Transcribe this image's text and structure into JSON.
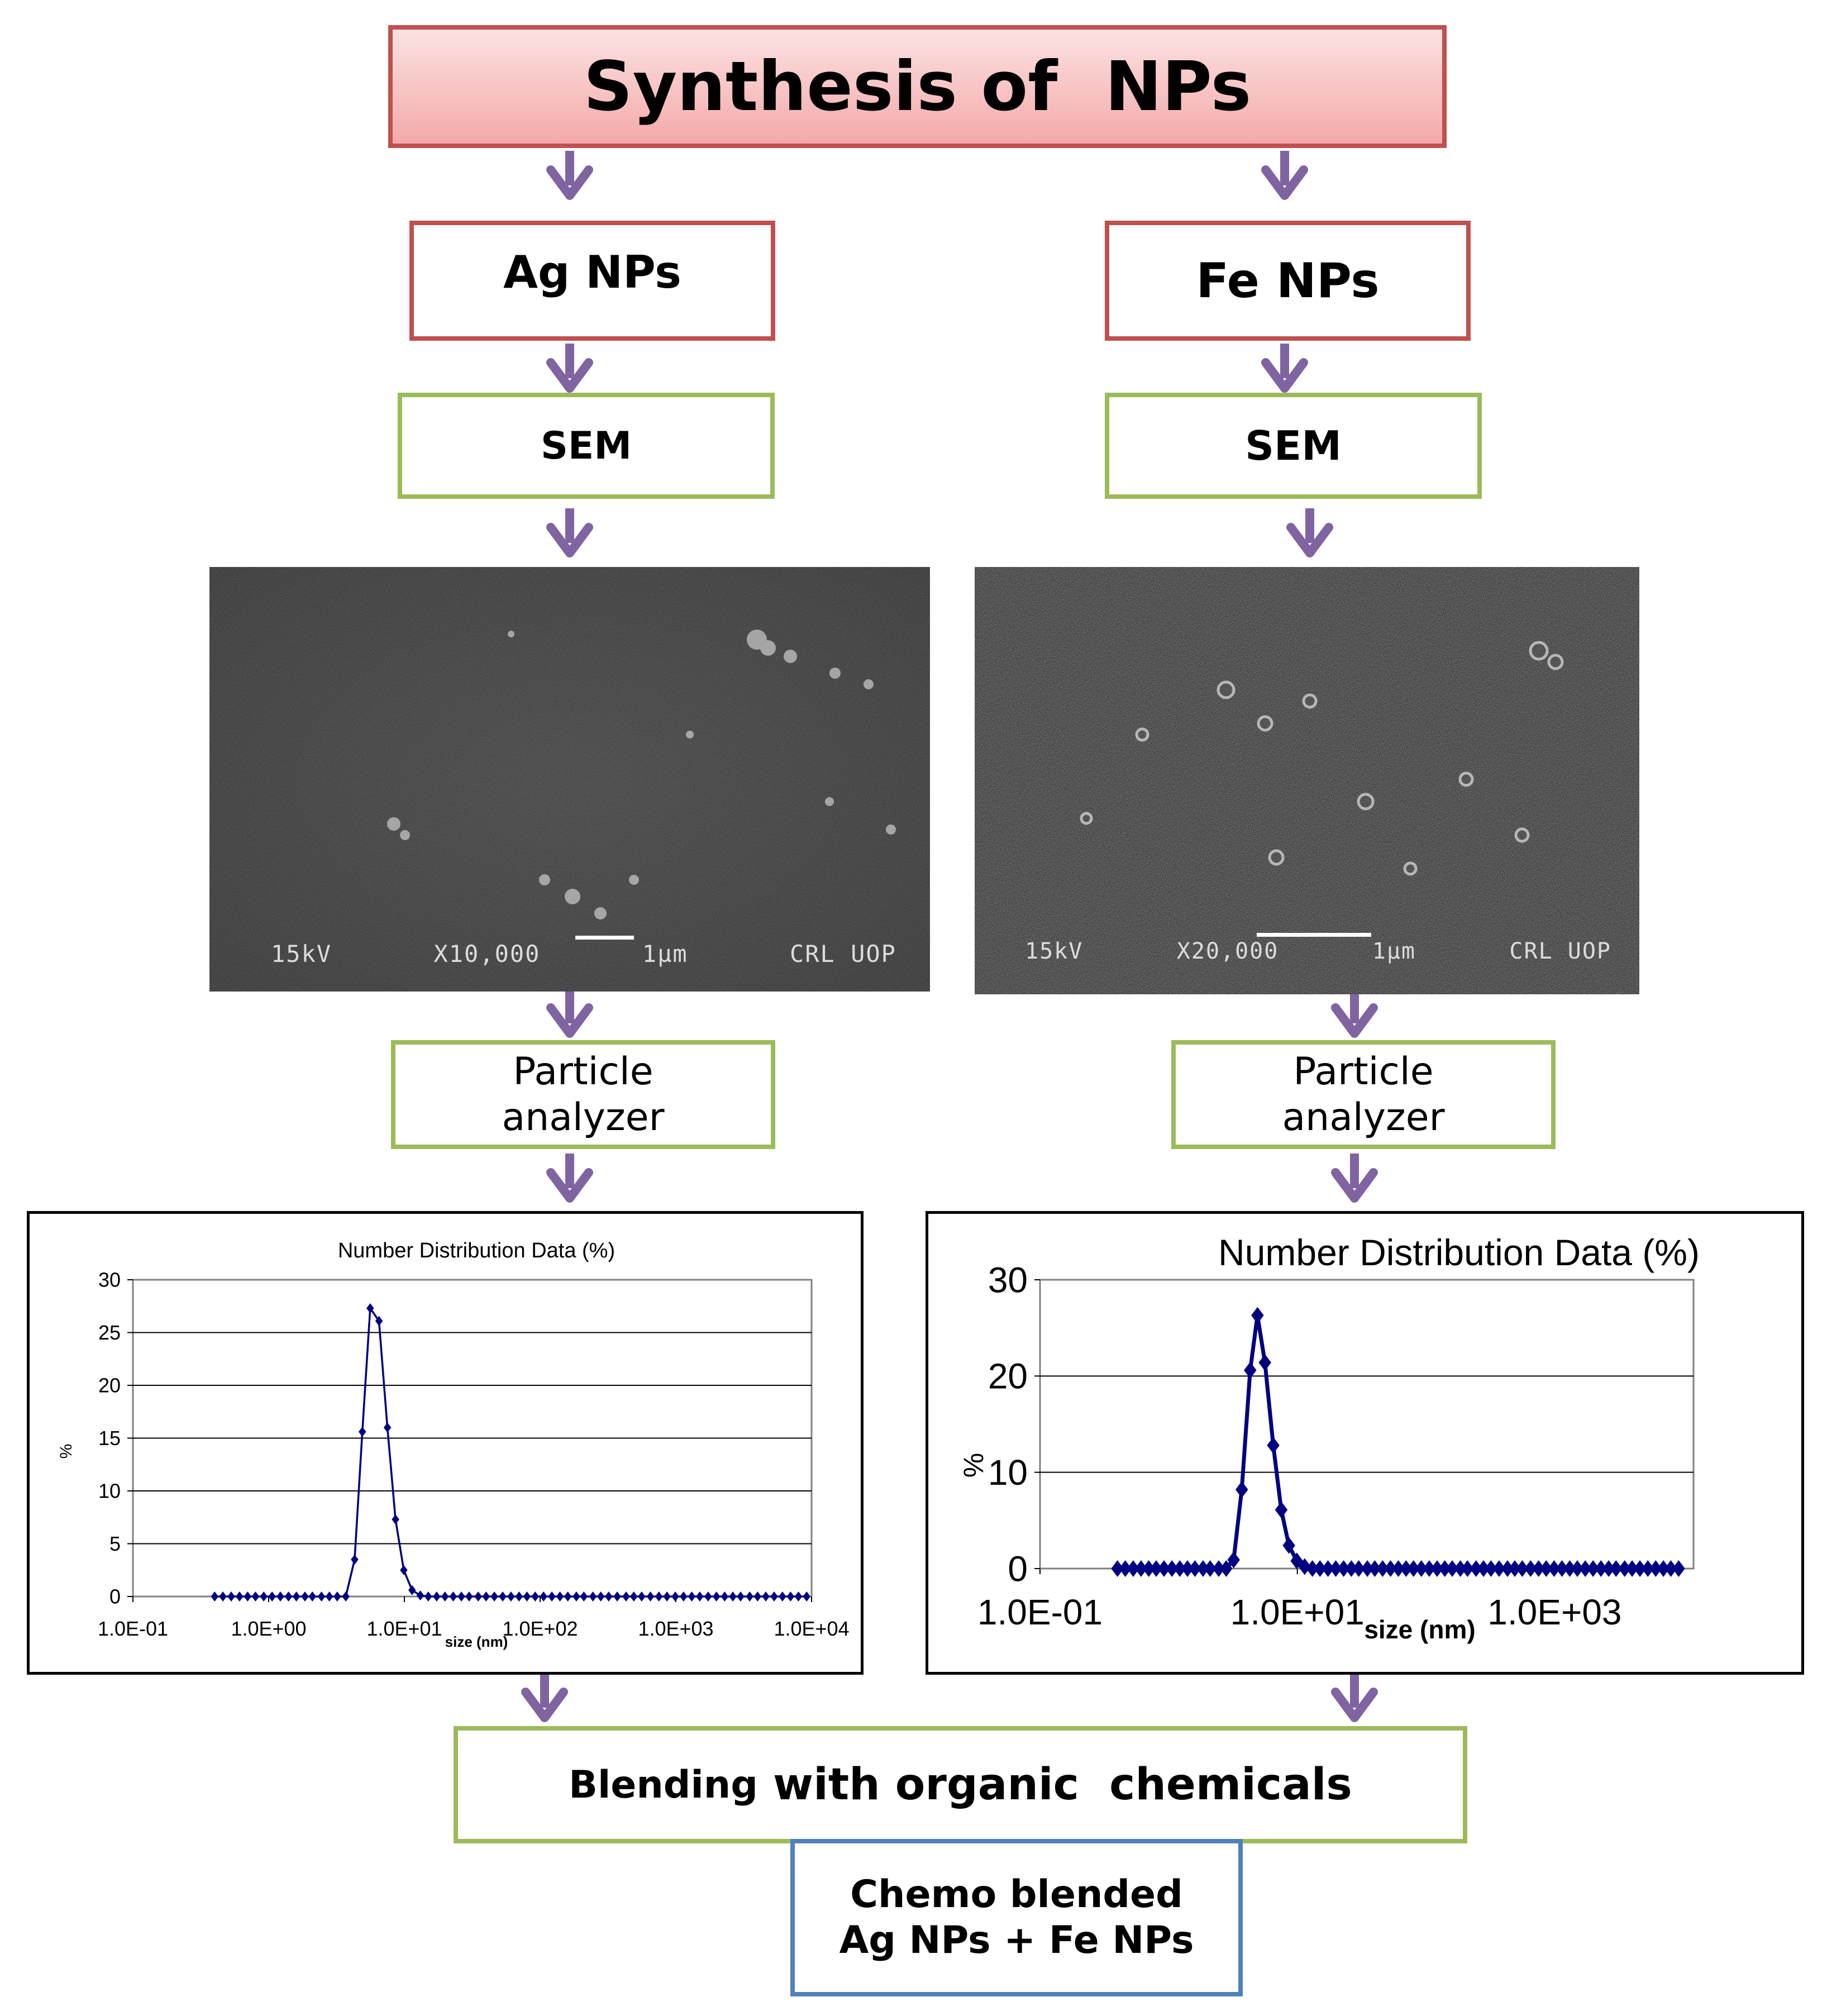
{
  "title": "Synthesis of  NPs",
  "left": {
    "np": "Ag NPs",
    "sem": "SEM",
    "analyzer_line1": "Particle",
    "analyzer_line2": "analyzer",
    "micrograph": {
      "kv": "15kV",
      "mag": "X10,000",
      "scale": "1µm",
      "lab": "CRL UOP"
    }
  },
  "right": {
    "np": "Fe NPs",
    "sem": "SEM",
    "analyzer_line1": "Particle",
    "analyzer_line2": "analyzer",
    "micrograph": {
      "kv": "15kV",
      "mag": "X20,000",
      "scale": "1µm",
      "lab": "CRL UOP"
    }
  },
  "blending": {
    "part1": "Blending",
    "part2": " with organic  chemicals"
  },
  "result": {
    "line1": "Chemo blended",
    "line2": "Ag NPs + Fe NPs"
  },
  "colors": {
    "arrow": "#8064a2",
    "series": "#000080",
    "red_border": "#c0504d",
    "green_border": "#9bbb59",
    "blue_border": "#4f81bd"
  },
  "chart_data": [
    {
      "type": "line",
      "title": "Number Distribution Data (%)",
      "xlabel": "size (nm)",
      "ylabel": "%",
      "x_scale": "log",
      "xlim": [
        0.1,
        10000
      ],
      "ylim": [
        0,
        30
      ],
      "yticks": [
        0,
        5,
        10,
        15,
        20,
        25,
        30
      ],
      "xtick_labels": [
        "1.0E-01",
        "1.0E+00",
        "1.0E+01",
        "1.0E+02",
        "1.0E+03",
        "1.0E+04"
      ],
      "grid": true,
      "series": [
        {
          "x": [
            0.4,
            0.46,
            0.53,
            0.61,
            0.7,
            0.8,
            0.92,
            1.06,
            1.22,
            1.4,
            1.6,
            1.85,
            2.1,
            2.45,
            2.8,
            3.2,
            3.7,
            4.3,
            4.9,
            5.6,
            6.5,
            7.5,
            8.6,
            9.9,
            11.4,
            13.1,
            15,
            17.3,
            19.9,
            22.9,
            26.3,
            30,
            35,
            40,
            46,
            53,
            61,
            70,
            80,
            92,
            106,
            122,
            140,
            160,
            185,
            210,
            245,
            280,
            320,
            370,
            430,
            490,
            560,
            650,
            750,
            860,
            990,
            1140,
            1310,
            1500,
            1730,
            1990,
            2290,
            2630,
            3000,
            3500,
            4000,
            4600,
            5300,
            6100,
            7000,
            8000,
            9200
          ],
          "y": [
            0,
            0,
            0,
            0,
            0,
            0,
            0,
            0,
            0,
            0,
            0,
            0,
            0,
            0,
            0,
            0,
            0,
            3.5,
            15.6,
            27.3,
            26.1,
            16,
            7.3,
            2.5,
            0.6,
            0.1,
            0,
            0,
            0,
            0,
            0,
            0,
            0,
            0,
            0,
            0,
            0,
            0,
            0,
            0,
            0,
            0,
            0,
            0,
            0,
            0,
            0,
            0,
            0,
            0,
            0,
            0,
            0,
            0,
            0,
            0,
            0,
            0,
            0,
            0,
            0,
            0,
            0,
            0,
            0,
            0,
            0,
            0,
            0,
            0,
            0,
            0,
            0
          ]
        }
      ]
    },
    {
      "type": "line",
      "title": "Number Distribution Data (%)",
      "xlabel": "size (nm)",
      "ylabel": "%",
      "x_scale": "log",
      "xlim": [
        0.1,
        12000
      ],
      "ylim": [
        0,
        30
      ],
      "yticks": [
        0,
        10,
        20,
        30
      ],
      "xtick_labels": [
        "1.0E-01",
        "1.0E+01",
        "1.0E+03"
      ],
      "grid": true,
      "series": [
        {
          "x": [
            0.4,
            0.46,
            0.53,
            0.61,
            0.7,
            0.8,
            0.92,
            1.06,
            1.22,
            1.4,
            1.6,
            1.85,
            2.1,
            2.45,
            2.8,
            3.2,
            3.7,
            4.3,
            4.9,
            5.6,
            6.5,
            7.5,
            8.6,
            9.9,
            11.4,
            13.1,
            15,
            17.3,
            19.9,
            22.9,
            26.3,
            30,
            35,
            40,
            46,
            53,
            61,
            70,
            80,
            92,
            106,
            122,
            140,
            160,
            185,
            210,
            245,
            280,
            320,
            370,
            430,
            490,
            560,
            650,
            750,
            860,
            990,
            1140,
            1310,
            1500,
            1730,
            1990,
            2290,
            2630,
            3000,
            3500,
            4000,
            4600,
            5300,
            6100,
            7000,
            8000,
            9200
          ],
          "y": [
            0,
            0,
            0,
            0,
            0,
            0,
            0,
            0,
            0,
            0,
            0,
            0,
            0,
            0,
            0,
            0.9,
            8.2,
            20.6,
            26.3,
            21.4,
            12.8,
            6.1,
            2.4,
            0.8,
            0.2,
            0,
            0,
            0,
            0,
            0,
            0,
            0,
            0,
            0,
            0,
            0,
            0,
            0,
            0,
            0,
            0,
            0,
            0,
            0,
            0,
            0,
            0,
            0,
            0,
            0,
            0,
            0,
            0,
            0,
            0,
            0,
            0,
            0,
            0,
            0,
            0,
            0,
            0,
            0,
            0,
            0,
            0,
            0,
            0,
            0,
            0,
            0,
            0
          ]
        }
      ]
    }
  ]
}
